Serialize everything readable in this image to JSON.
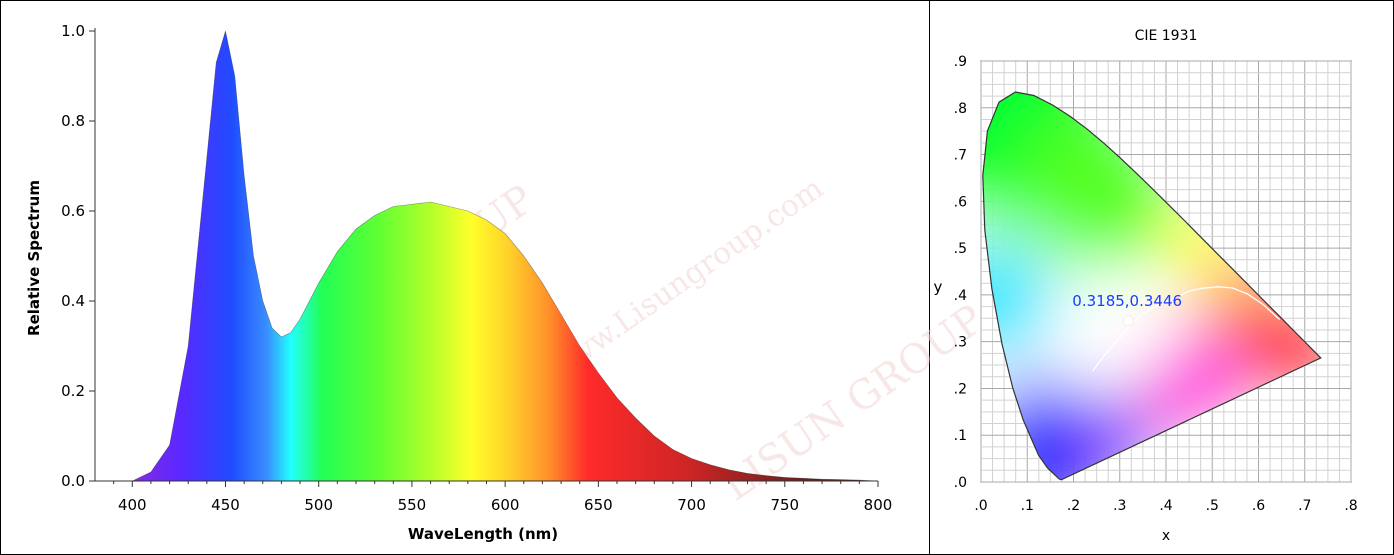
{
  "chart_data": [
    {
      "type": "area",
      "xlabel": "WaveLength (nm)",
      "ylabel": "Relative Spectrum",
      "xlim": [
        380,
        800
      ],
      "ylim": [
        0,
        1.0
      ],
      "x_ticks": [
        400,
        450,
        500,
        550,
        600,
        650,
        700,
        750,
        800
      ],
      "x_tick_labels": [
        "400",
        "450",
        "500",
        "550",
        "600",
        "650",
        "700",
        "750",
        "800"
      ],
      "y_ticks": [
        0,
        0.2,
        0.4,
        0.6,
        0.8,
        1.0
      ],
      "y_tick_labels": [
        "0.0",
        "0.2",
        "0.4",
        "0.6",
        "0.8",
        "1.0"
      ],
      "series": [
        {
          "x": [
            400,
            410,
            420,
            430,
            440,
            445,
            450,
            455,
            460,
            465,
            470,
            475,
            480,
            485,
            490,
            500,
            510,
            520,
            530,
            540,
            550,
            560,
            570,
            580,
            590,
            600,
            610,
            620,
            630,
            640,
            650,
            660,
            670,
            680,
            690,
            700,
            710,
            720,
            730,
            740,
            750,
            760,
            770,
            780,
            790,
            800
          ],
          "values": [
            0.0,
            0.02,
            0.08,
            0.3,
            0.72,
            0.93,
            1.0,
            0.9,
            0.68,
            0.5,
            0.4,
            0.34,
            0.32,
            0.33,
            0.36,
            0.44,
            0.51,
            0.56,
            0.59,
            0.61,
            0.615,
            0.62,
            0.61,
            0.6,
            0.58,
            0.55,
            0.5,
            0.44,
            0.37,
            0.3,
            0.24,
            0.185,
            0.14,
            0.1,
            0.07,
            0.05,
            0.036,
            0.025,
            0.017,
            0.012,
            0.008,
            0.006,
            0.004,
            0.003,
            0.002,
            0.0
          ]
        }
      ]
    },
    {
      "type": "scatter",
      "title": "CIE 1931",
      "xlabel": "x",
      "ylabel": "y",
      "xlim": [
        0,
        0.8
      ],
      "ylim": [
        0,
        0.9
      ],
      "grid": true,
      "x_ticks": [
        0,
        0.1,
        0.2,
        0.3,
        0.4,
        0.5,
        0.6,
        0.7,
        0.8
      ],
      "x_tick_labels": [
        ".0",
        ".1",
        ".2",
        ".3",
        ".4",
        ".5",
        ".6",
        ".7",
        ".8"
      ],
      "y_ticks": [
        0,
        0.1,
        0.2,
        0.3,
        0.4,
        0.5,
        0.6,
        0.7,
        0.8,
        0.9
      ],
      "y_tick_labels": [
        ".0",
        ".1",
        ".2",
        ".3",
        ".4",
        ".5",
        ".6",
        ".7",
        ".8",
        ".9"
      ],
      "point": {
        "x": 0.3185,
        "y": 0.3446,
        "label": "0.3185,0.3446"
      },
      "locus": [
        [
          0.1741,
          0.005
        ],
        [
          0.1714,
          0.0051
        ],
        [
          0.1689,
          0.0069
        ],
        [
          0.1644,
          0.0109
        ],
        [
          0.144,
          0.0297
        ],
        [
          0.1241,
          0.0578
        ],
        [
          0.0913,
          0.1327
        ],
        [
          0.0687,
          0.2007
        ],
        [
          0.0454,
          0.295
        ],
        [
          0.0235,
          0.4127
        ],
        [
          0.0082,
          0.5384
        ],
        [
          0.0039,
          0.6548
        ],
        [
          0.0139,
          0.7502
        ],
        [
          0.0389,
          0.812
        ],
        [
          0.0743,
          0.8338
        ],
        [
          0.1142,
          0.8262
        ],
        [
          0.1547,
          0.8059
        ],
        [
          0.1929,
          0.7816
        ],
        [
          0.2296,
          0.7543
        ],
        [
          0.2658,
          0.7243
        ],
        [
          0.3016,
          0.6923
        ],
        [
          0.3373,
          0.6589
        ],
        [
          0.3731,
          0.6245
        ],
        [
          0.4087,
          0.5896
        ],
        [
          0.4441,
          0.5547
        ],
        [
          0.4788,
          0.5202
        ],
        [
          0.5125,
          0.4866
        ],
        [
          0.5448,
          0.4544
        ],
        [
          0.5752,
          0.4242
        ],
        [
          0.6029,
          0.3965
        ],
        [
          0.627,
          0.3725
        ],
        [
          0.6482,
          0.3514
        ],
        [
          0.6658,
          0.334
        ],
        [
          0.6801,
          0.3197
        ],
        [
          0.6915,
          0.3083
        ],
        [
          0.7006,
          0.2993
        ],
        [
          0.714,
          0.2859
        ],
        [
          0.7347,
          0.2653
        ]
      ],
      "planckian": [
        [
          0.2414,
          0.2368
        ],
        [
          0.2525,
          0.2523
        ],
        [
          0.2653,
          0.2689
        ],
        [
          0.28,
          0.2864
        ],
        [
          0.2952,
          0.3033
        ],
        [
          0.3135,
          0.3237
        ],
        [
          0.3312,
          0.3428
        ],
        [
          0.3457,
          0.3559
        ],
        [
          0.3646,
          0.3689
        ],
        [
          0.3805,
          0.3768
        ],
        [
          0.4053,
          0.3882
        ],
        [
          0.4205,
          0.3939
        ],
        [
          0.4388,
          0.4026
        ],
        [
          0.4476,
          0.4074
        ],
        [
          0.4782,
          0.4143
        ],
        [
          0.5141,
          0.4172
        ],
        [
          0.5439,
          0.4147
        ],
        [
          0.5765,
          0.4018
        ],
        [
          0.6111,
          0.3786
        ],
        [
          0.6458,
          0.3474
        ]
      ]
    }
  ],
  "watermarks": [
    "LISUN GROUP",
    "www.Lisungroup.com"
  ]
}
